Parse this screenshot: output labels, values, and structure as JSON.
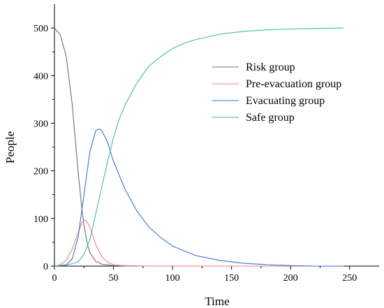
{
  "chart_data": {
    "type": "line",
    "title": "",
    "xlabel": "Time",
    "ylabel": "People",
    "xlim": [
      0,
      275
    ],
    "ylim": [
      0,
      550
    ],
    "xticks": [
      0,
      50,
      100,
      150,
      200,
      250
    ],
    "yticks": [
      0,
      100,
      200,
      300,
      400,
      500
    ],
    "grid": false,
    "legend_position": "center-right",
    "series": [
      {
        "name": "Risk group",
        "color": "#6e6e6e",
        "x": [
          0,
          5,
          10,
          15,
          20,
          23,
          25,
          28,
          30,
          35,
          40,
          50,
          60,
          80,
          100,
          150,
          200,
          245
        ],
        "y": [
          500,
          485,
          440,
          340,
          200,
          125,
          85,
          45,
          28,
          10,
          4,
          1,
          0,
          0,
          0,
          0,
          0,
          0
        ]
      },
      {
        "name": "Pre-evacuation group",
        "color": "#e8857a",
        "x": [
          0,
          5,
          10,
          15,
          20,
          23,
          25,
          27,
          30,
          33,
          35,
          40,
          45,
          50,
          60,
          80,
          100,
          150,
          200,
          245
        ],
        "y": [
          0,
          3,
          12,
          35,
          70,
          90,
          97,
          95,
          82,
          60,
          45,
          20,
          8,
          3,
          1,
          0,
          0,
          0,
          0,
          0
        ]
      },
      {
        "name": "Evacuating group",
        "color": "#3a6fd8",
        "x": [
          0,
          10,
          15,
          20,
          25,
          30,
          35,
          38,
          40,
          45,
          50,
          60,
          70,
          80,
          90,
          100,
          120,
          140,
          160,
          180,
          200,
          220,
          245
        ],
        "y": [
          0,
          3,
          15,
          60,
          150,
          240,
          285,
          288,
          285,
          260,
          220,
          160,
          115,
          82,
          60,
          42,
          22,
          12,
          6,
          3,
          1,
          0,
          0
        ]
      },
      {
        "name": "Safe group",
        "color": "#3fbf9a",
        "x": [
          0,
          10,
          20,
          25,
          30,
          35,
          40,
          45,
          50,
          55,
          60,
          70,
          80,
          90,
          100,
          110,
          120,
          140,
          160,
          180,
          200,
          220,
          245
        ],
        "y": [
          0,
          2,
          8,
          25,
          55,
          110,
          165,
          220,
          270,
          310,
          340,
          385,
          420,
          440,
          457,
          468,
          476,
          487,
          493,
          496,
          498,
          499,
          500
        ]
      }
    ]
  }
}
